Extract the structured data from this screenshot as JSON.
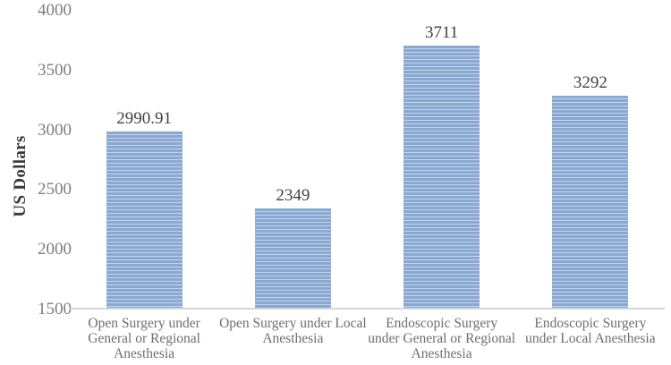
{
  "chart_data": {
    "type": "bar",
    "title": "",
    "xlabel": "",
    "ylabel": "US Dollars",
    "categories": [
      "Open Surgery under\nGeneral or Regional\nAnesthesia",
      "Open Surgery under Local\nAnesthesia",
      "Endoscopic Surgery\nunder General or Regional\nAnesthesia",
      "Endoscopic Surgery\nunder Local Anesthesia"
    ],
    "values": [
      2990.91,
      2349,
      3711,
      3292
    ],
    "value_labels": [
      "2990.91",
      "2349",
      "3711",
      "3292"
    ],
    "ylim": [
      1500,
      4000
    ],
    "yticks": [
      1500,
      2000,
      2500,
      3000,
      3500,
      4000
    ],
    "grid": false,
    "legend": false,
    "colors": {
      "bar_fill": "#95b3d7",
      "bar_stripe_dark": "#8aa9d2",
      "bar_stripe_light": "#c3d2e8",
      "axis_line": "#d6d6d6",
      "tick_label": "#7d7d7d",
      "category_label": "#6e6e6e",
      "value_label": "#414141",
      "ylabel": "#383838",
      "background": "#ffffff"
    }
  }
}
